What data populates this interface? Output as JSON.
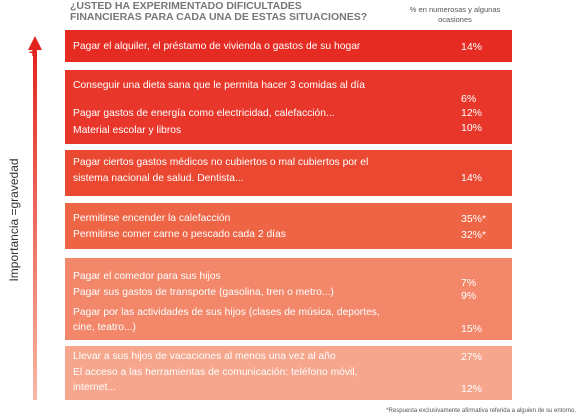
{
  "header": {
    "title_lines": [
      "¿USTED HA EXPERIMENTADO DIFICULTADES",
      "FINANCIERAS PARA CADA UNA DE ESTAS SITUACIONES?"
    ],
    "column_note_lines": [
      "% en numerosas y algunas",
      "ocasiones"
    ]
  },
  "axis": {
    "label": "Importancia =gravedad",
    "top_marker": "+"
  },
  "groups": [
    {
      "items": [
        {
          "lines": [
            "Pagar el alquiler, el préstamo de vivienda o gastos de su hogar"
          ],
          "value": "14%"
        }
      ]
    },
    {
      "items": [
        {
          "lines": [
            "Conseguir una dieta sana que le permita hacer 3 comidas al día"
          ],
          "value": "6%"
        },
        {
          "lines": [
            "Pagar gastos de energía como electricidad, calefacción..."
          ],
          "value": "12%"
        },
        {
          "lines": [
            "Material escolar y libros"
          ],
          "value": "10%"
        }
      ]
    },
    {
      "items": [
        {
          "lines": [
            "Pagar ciertos gastos médicos no cubiertos o mal cubiertos por el",
            "sistema nacional de salud. Dentista..."
          ],
          "value": "14%"
        }
      ]
    },
    {
      "items": [
        {
          "lines": [
            "Permitirse encender la calefacción"
          ],
          "value": "35%*"
        },
        {
          "lines": [
            "Permitirse comer carne o pescado cada 2 días"
          ],
          "value": "32%*"
        }
      ]
    },
    {
      "items": [
        {
          "lines": [
            "Pagar el comedor para sus hijos"
          ],
          "value": "7%"
        },
        {
          "lines": [
            "Pagar sus gastos de transporte (gasolina, tren o metro...)"
          ],
          "value": "9%"
        },
        {
          "lines": [
            "Pagar por las actividades de sus hijos (clases de música, deportes,",
            "cine, teatro...)"
          ],
          "value": "15%"
        }
      ]
    },
    {
      "items": [
        {
          "lines": [
            "Llevar a sus hijos de vacaciones al menos una vez al año"
          ],
          "value": "27%"
        },
        {
          "lines": [
            "El acceso a las herramientas de comunicación: teléfono móvil,",
            "internet..."
          ],
          "value": "12%"
        }
      ]
    }
  ],
  "footnote": "*Respuesta exclusivamente afirmativa  referida a alguien de su entorno."
}
